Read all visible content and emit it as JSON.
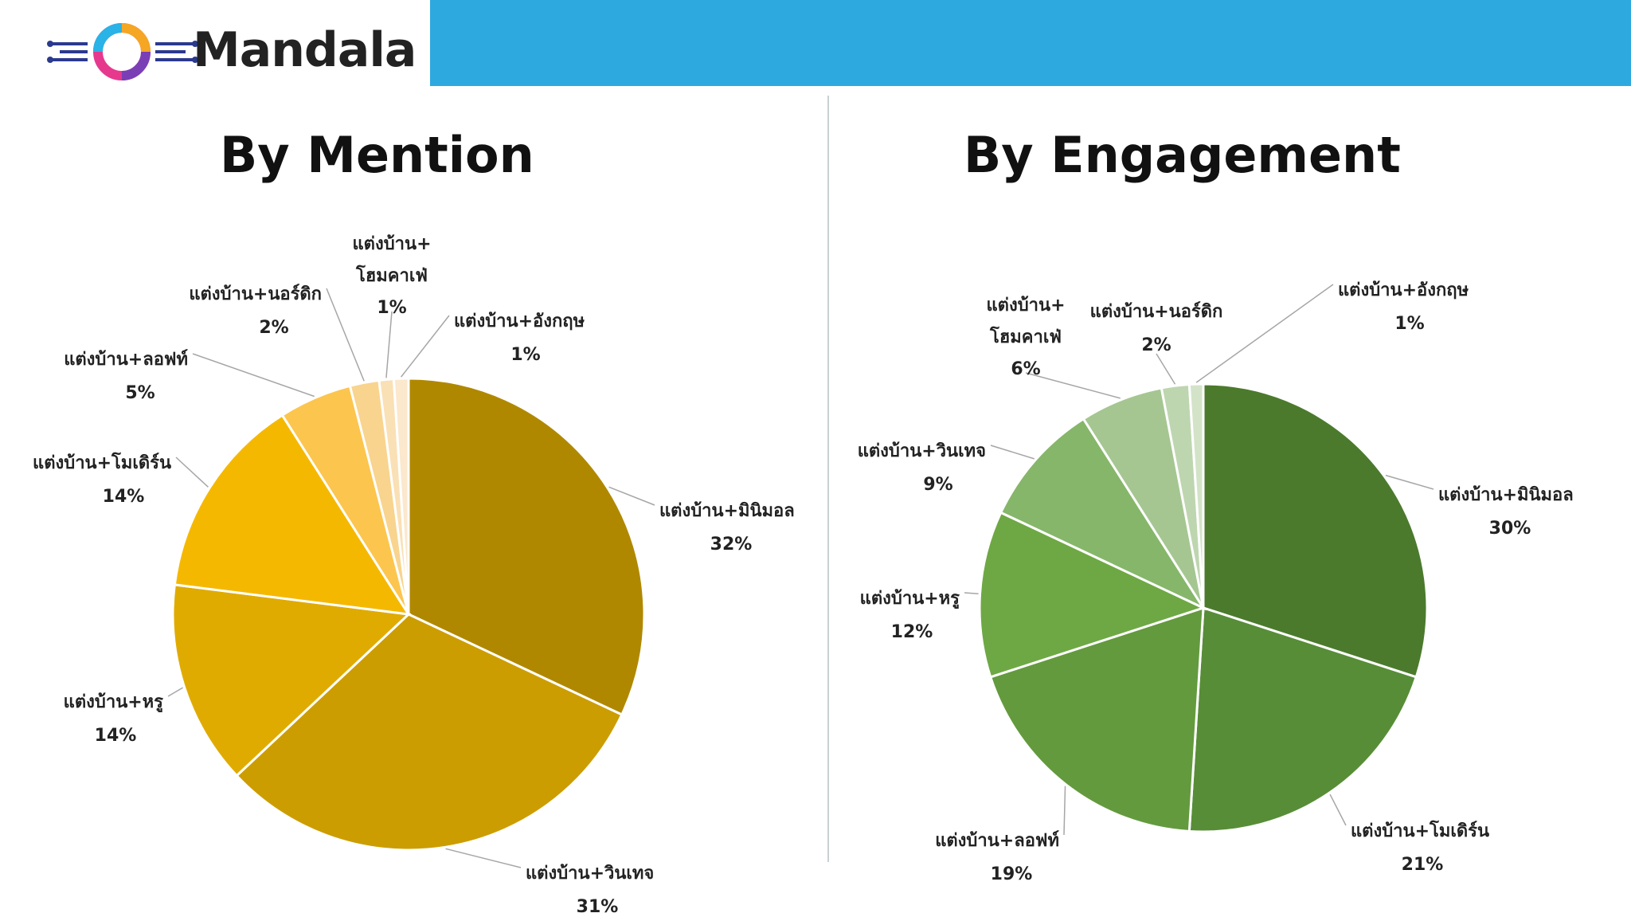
{
  "brand": {
    "name": "Mandala"
  },
  "chart_data": [
    {
      "type": "pie",
      "title": "By Mention",
      "unit": "%",
      "slices": [
        {
          "label": "แต่งบ้าน+มินิมอล",
          "value": 32,
          "color": "#b08800"
        },
        {
          "label": "แต่งบ้าน+วินเทจ",
          "value": 31,
          "color": "#cc9d00"
        },
        {
          "label": "แต่งบ้าน+หรู",
          "value": 14,
          "color": "#e0ab00"
        },
        {
          "label": "แต่งบ้าน+โมเดิร์น",
          "value": 14,
          "color": "#f5b800"
        },
        {
          "label": "แต่งบ้าน+ลอฟท์",
          "value": 5,
          "color": "#fcc54e"
        },
        {
          "label": "แต่งบ้าน+นอร์ดิก",
          "value": 2,
          "color": "#f8d48e"
        },
        {
          "label": "แต่งบ้าน+โฮมคาเฟ่",
          "value": 1,
          "color": "#fae0b5"
        },
        {
          "label": "แต่งบ้าน+อังกฤษ",
          "value": 1,
          "color": "#fbe8cd"
        }
      ]
    },
    {
      "type": "pie",
      "title": "By Engagement",
      "unit": "%",
      "slices": [
        {
          "label": "แต่งบ้าน+มินิมอล",
          "value": 30,
          "color": "#4b7a2d"
        },
        {
          "label": "แต่งบ้าน+โมเดิร์น",
          "value": 21,
          "color": "#578d37"
        },
        {
          "label": "แต่งบ้าน+ลอฟท์",
          "value": 19,
          "color": "#639a3e"
        },
        {
          "label": "แต่งบ้าน+หรู",
          "value": 12,
          "color": "#6ea844"
        },
        {
          "label": "แต่งบ้าน+วินเทจ",
          "value": 9,
          "color": "#86b66a"
        },
        {
          "label": "แต่งบ้าน+โฮมคาเฟ่",
          "value": 6,
          "color": "#a5c691"
        },
        {
          "label": "แต่งบ้าน+นอร์ดิก",
          "value": 2,
          "color": "#bed6b0"
        },
        {
          "label": "แต่งบ้าน+อังกฤษ",
          "value": 1,
          "color": "#d3e3c8"
        }
      ]
    }
  ]
}
